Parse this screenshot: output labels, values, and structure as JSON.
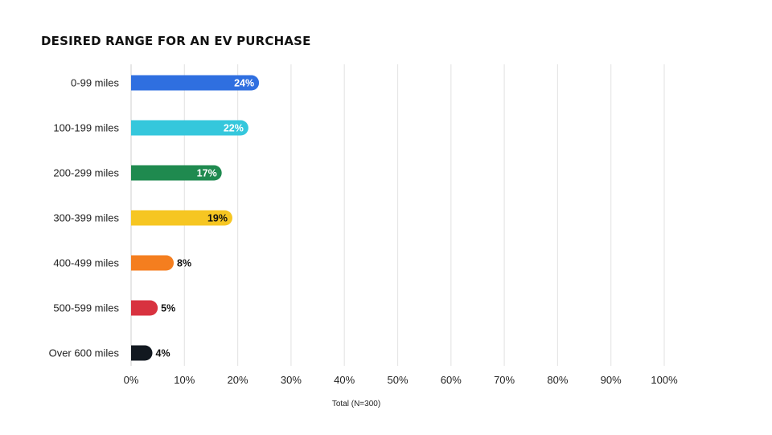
{
  "chart_data": {
    "type": "bar",
    "orientation": "horizontal",
    "title": "DESIRED RANGE FOR AN EV PURCHASE",
    "xlabel": "Total (N=300)",
    "ylabel": "",
    "xlim": [
      0,
      100
    ],
    "x_ticks": [
      "0%",
      "10%",
      "20%",
      "30%",
      "40%",
      "50%",
      "60%",
      "70%",
      "80%",
      "90%",
      "100%"
    ],
    "grid": true,
    "categories": [
      "0-99 miles",
      "100-199 miles",
      "200-299 miles",
      "300-399 miles",
      "400-499 miles",
      "500-599 miles",
      "Over 600 miles"
    ],
    "values": [
      24,
      22,
      17,
      19,
      8,
      5,
      4
    ],
    "value_labels": [
      "24%",
      "22%",
      "17%",
      "19%",
      "8%",
      "5%",
      "4%"
    ],
    "colors": [
      "#2f6fe0",
      "#35c7dc",
      "#1f8a4f",
      "#f6c622",
      "#f47e1f",
      "#d8323f",
      "#121820"
    ],
    "label_colors": [
      "#ffffff",
      "#ffffff",
      "#ffffff",
      "#111111",
      "#111111",
      "#111111",
      "#111111"
    ],
    "label_positions": [
      "inside",
      "inside",
      "inside",
      "inside",
      "outside",
      "outside",
      "outside"
    ]
  }
}
